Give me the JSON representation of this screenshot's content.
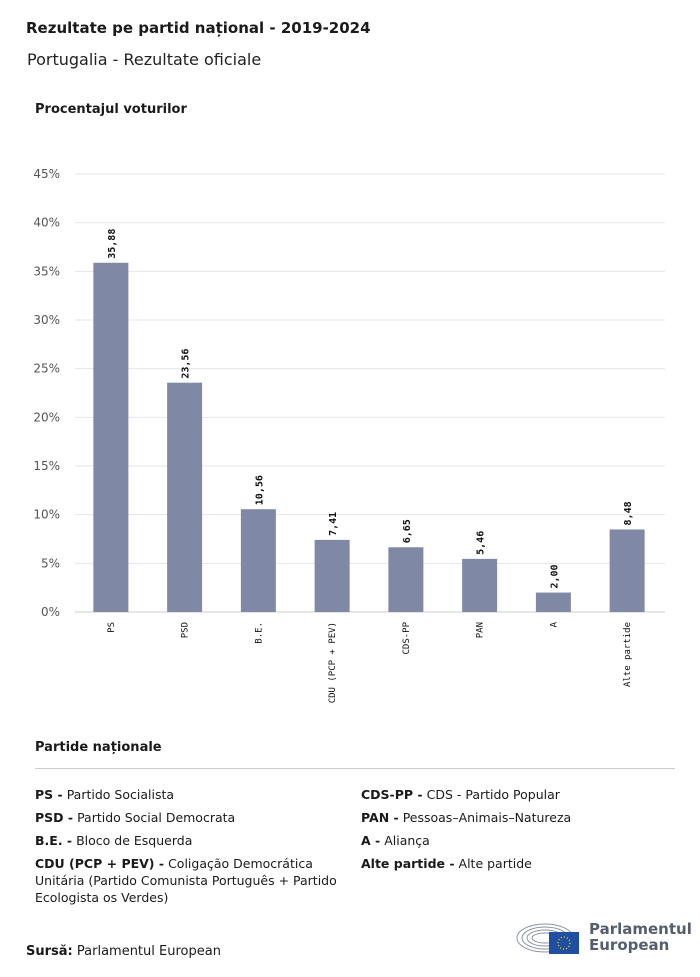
{
  "header": {
    "title": "Rezultate pe partid național - 2019-2024",
    "subtitle": "Portugalia - Rezultate oficiale"
  },
  "chart_data": {
    "type": "bar",
    "ylabel": "Procentajul voturilor",
    "categories": [
      "PS",
      "PSD",
      "B.E.",
      "CDU (PCP + PEV)",
      "CDS-PP",
      "PAN",
      "A",
      "Alte partide"
    ],
    "values": [
      35.88,
      23.56,
      10.56,
      7.41,
      6.65,
      5.46,
      2.0,
      8.48
    ],
    "data_labels": [
      "35,88",
      "23,56",
      "10,56",
      "7,41",
      "6,65",
      "5,46",
      "2,00",
      "8,48"
    ],
    "ylim": [
      0,
      45
    ],
    "yticks": [
      "0%",
      "5%",
      "10%",
      "15%",
      "20%",
      "25%",
      "30%",
      "35%",
      "40%",
      "45%"
    ],
    "grid": true,
    "bar_color": "#7f89a5"
  },
  "legend": {
    "title": "Partide naționale",
    "left": [
      {
        "abbr": "PS -",
        "name": "Partido Socialista"
      },
      {
        "abbr": "PSD -",
        "name": "Partido Social Democrata"
      },
      {
        "abbr": "B.E. -",
        "name": "Bloco de Esquerda"
      },
      {
        "abbr": "CDU (PCP + PEV) -",
        "name": "Coligação Democrática Unitária (Partido Comunista Português + Partido Ecologista os Verdes)"
      }
    ],
    "right": [
      {
        "abbr": "CDS-PP -",
        "name": "CDS - Partido Popular"
      },
      {
        "abbr": "PAN -",
        "name": "Pessoas–Animais–Natureza"
      },
      {
        "abbr": "A -",
        "name": "Aliança"
      },
      {
        "abbr": "Alte partide -",
        "name": "Alte partide"
      }
    ]
  },
  "footer": {
    "source_label": "Sursă:",
    "source": "Parlamentul European",
    "logo_text_1": "Parlamentul",
    "logo_text_2": "European"
  }
}
